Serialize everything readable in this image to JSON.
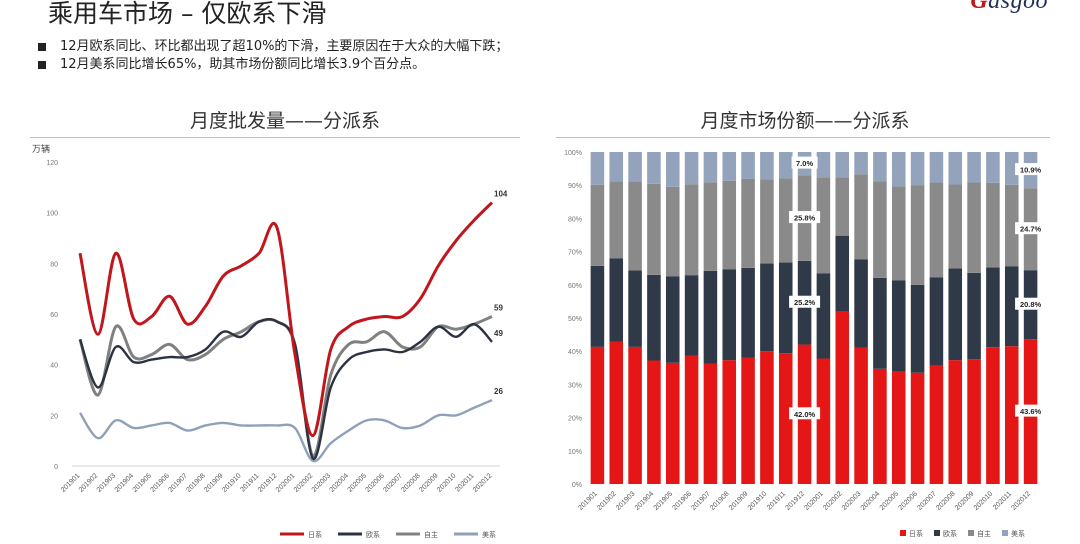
{
  "header": {
    "title": "乘用车市场 – 仅欧系下滑",
    "logo_text": "Gasgoo",
    "bullets": [
      "12月欧系同比、环比都出现了超10%的下滑，主要原因在于大众的大幅下跌；",
      "12月美系同比增长65%，助其市场份额同比增长3.9个百分点。"
    ]
  },
  "colors": {
    "japan": "#c0161c",
    "europe": "#2b3342",
    "china": "#808080",
    "usa": "#8fa1b8",
    "share_jp": "#e51616",
    "share_eu": "#2f3947",
    "share_cn": "#8a8a8a",
    "share_us": "#92a3bb"
  },
  "chart_data": [
    {
      "type": "line",
      "title": "月度批发量——分派系",
      "ylabel": "万辆",
      "ylim": [
        0,
        120
      ],
      "yticks": [
        0,
        20,
        40,
        60,
        80,
        100,
        120
      ],
      "x": [
        "201901",
        "201902",
        "201903",
        "201904",
        "201905",
        "201906",
        "201907",
        "201908",
        "201909",
        "201910",
        "201911",
        "201912",
        "202001",
        "202002",
        "202003",
        "202004",
        "202005",
        "202006",
        "202007",
        "202008",
        "202009",
        "202010",
        "202011",
        "202012"
      ],
      "series": [
        {
          "name": "日系",
          "color_key": "japan",
          "values": [
            84,
            52,
            84,
            58,
            59,
            67,
            56,
            63,
            75,
            79,
            84,
            94,
            44,
            12,
            46,
            55,
            58,
            59,
            59,
            66,
            79,
            89,
            97,
            104
          ]
        },
        {
          "name": "欧系",
          "color_key": "europe",
          "values": [
            50,
            31,
            47,
            41,
            42,
            43,
            43,
            46,
            53,
            51,
            57,
            57,
            48,
            3,
            31,
            42,
            45,
            46,
            45,
            49,
            55,
            51,
            56,
            49
          ]
        },
        {
          "name": "自主",
          "color_key": "china",
          "values": [
            50,
            28,
            55,
            43,
            44,
            48,
            42,
            44,
            50,
            53,
            57,
            57,
            48,
            4,
            36,
            48,
            49,
            53,
            47,
            47,
            55,
            54,
            56,
            59
          ]
        },
        {
          "name": "美系",
          "color_key": "usa",
          "values": [
            21,
            11,
            18,
            15,
            16,
            17,
            14,
            16,
            17,
            16,
            16,
            16,
            15,
            2,
            9,
            14,
            18,
            18,
            15,
            16,
            20,
            20,
            23,
            26
          ]
        }
      ],
      "end_labels": [
        "104",
        "59",
        "49",
        "26"
      ],
      "legend": "bottom"
    },
    {
      "type": "bar",
      "stacked": true,
      "title": "月度市场份额——分派系",
      "ylim": [
        0,
        100
      ],
      "yticks": [
        "0%",
        "10%",
        "20%",
        "30%",
        "40%",
        "50%",
        "60%",
        "70%",
        "80%",
        "90%",
        "100%"
      ],
      "categories": [
        "201901",
        "201902",
        "201903",
        "201904",
        "201905",
        "201906",
        "201907",
        "201908",
        "201909",
        "201910",
        "201911",
        "201912",
        "202001",
        "202002",
        "202003",
        "202004",
        "202005",
        "202006",
        "202007",
        "202008",
        "202009",
        "202010",
        "202011",
        "202012"
      ],
      "series": [
        {
          "name": "日系",
          "color_key": "share_jp",
          "values": [
            41.3,
            42.8,
            41.3,
            37.2,
            36.5,
            38.7,
            36.3,
            37.3,
            38.1,
            40.0,
            39.4,
            42.0,
            37.8,
            51.9,
            41.0,
            34.7,
            33.8,
            33.5,
            35.6,
            37.3,
            37.6,
            41.2,
            41.5,
            43.6
          ]
        },
        {
          "name": "欧系",
          "color_key": "share_eu",
          "values": [
            24.4,
            25.2,
            23.0,
            25.8,
            26.0,
            24.2,
            27.9,
            27.4,
            27.0,
            26.4,
            27.3,
            25.2,
            25.6,
            22.9,
            26.7,
            27.4,
            27.5,
            26.5,
            26.6,
            27.6,
            26.0,
            24.0,
            24.1,
            20.8
          ]
        },
        {
          "name": "自主",
          "color_key": "share_cn",
          "values": [
            24.4,
            23.2,
            26.9,
            27.4,
            27.0,
            27.4,
            26.7,
            26.6,
            26.8,
            25.4,
            25.3,
            25.8,
            29.0,
            17.5,
            25.6,
            29.0,
            28.4,
            29.9,
            28.6,
            25.3,
            27.2,
            25.5,
            24.5,
            24.7
          ]
        },
        {
          "name": "美系",
          "color_key": "share_us",
          "values": [
            9.9,
            8.8,
            8.8,
            9.6,
            10.5,
            9.7,
            9.1,
            8.7,
            8.1,
            8.2,
            8.0,
            7.0,
            7.6,
            7.7,
            6.7,
            8.9,
            10.3,
            10.1,
            9.2,
            9.8,
            9.2,
            9.3,
            9.9,
            10.9
          ]
        }
      ],
      "data_labels": [
        {
          "series": "美系",
          "category": "201912",
          "text": "7.0%"
        },
        {
          "series": "自主",
          "category": "201912",
          "text": "25.8%"
        },
        {
          "series": "欧系",
          "category": "201912",
          "text": "25.2%"
        },
        {
          "series": "日系",
          "category": "201912",
          "text": "42.0%"
        },
        {
          "series": "美系",
          "category": "202012",
          "text": "10.9%"
        },
        {
          "series": "自主",
          "category": "202012",
          "text": "24.7%"
        },
        {
          "series": "欧系",
          "category": "202012",
          "text": "20.8%"
        },
        {
          "series": "日系",
          "category": "202012",
          "text": "43.6%"
        }
      ],
      "legend": "bottom-right"
    }
  ]
}
